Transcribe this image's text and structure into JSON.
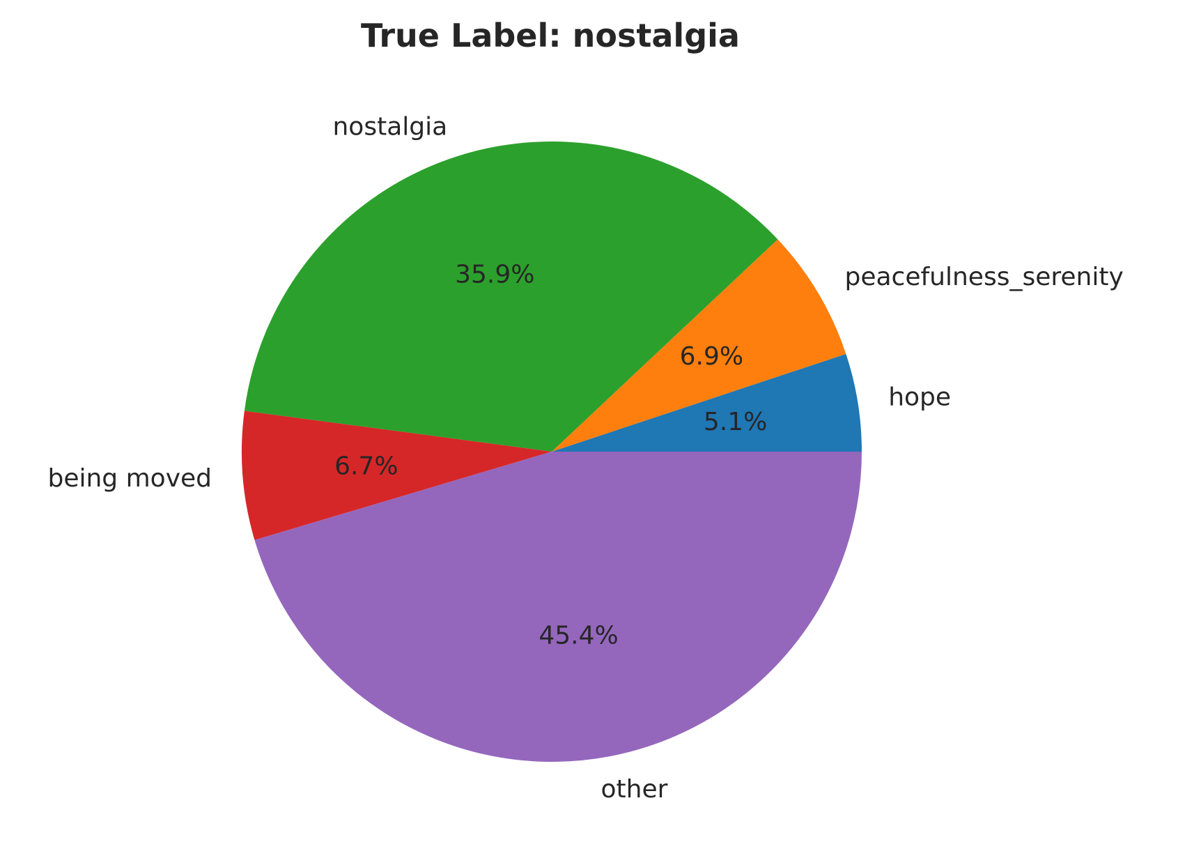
{
  "chart_data": {
    "type": "pie",
    "title": "True Label: nostalgia",
    "slices": [
      {
        "label": "hope",
        "value": 5.1,
        "pct_text": "5.1%",
        "color": "#1f77b4"
      },
      {
        "label": "peacefulness_serenity",
        "value": 6.9,
        "pct_text": "6.9%",
        "color": "#ff7f0e"
      },
      {
        "label": "nostalgia",
        "value": 35.9,
        "pct_text": "35.9%",
        "color": "#2ca02c"
      },
      {
        "label": "being moved",
        "value": 6.7,
        "pct_text": "6.7%",
        "color": "#d62728"
      },
      {
        "label": "other",
        "value": 45.4,
        "pct_text": "45.4%",
        "color": "#9467bd"
      }
    ],
    "start_angle": 0,
    "direction": "counterclockwise"
  }
}
